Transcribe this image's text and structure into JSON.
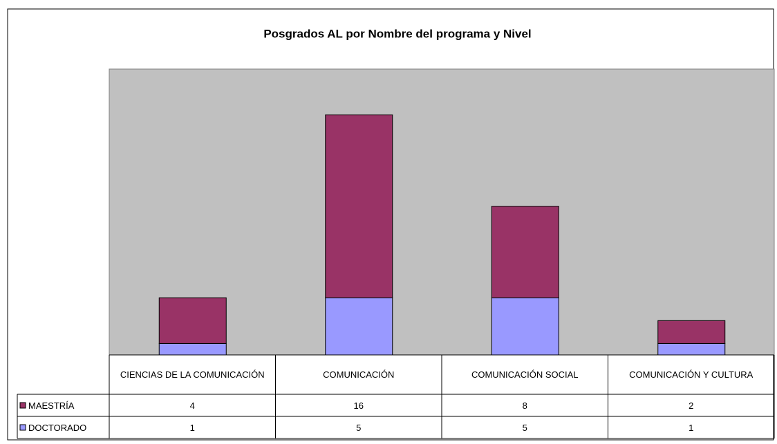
{
  "chart_data": {
    "type": "stacked_bar",
    "title": "Posgrados AL por Nombre del programa y Nivel",
    "categories": [
      "CIENCIAS DE LA COMUNICACIÓN",
      "COMUNICACIÓN",
      "COMUNICACIÓN SOCIAL",
      "COMUNICACIÓN Y CULTURA"
    ],
    "series": [
      {
        "name": "MAESTRÍA",
        "color": "#993366",
        "values": [
          4,
          16,
          8,
          2
        ]
      },
      {
        "name": "DOCTORADO",
        "color": "#9999ff",
        "values": [
          1,
          5,
          5,
          1
        ]
      }
    ],
    "ylim": [
      0,
      25
    ],
    "data_table": true
  }
}
